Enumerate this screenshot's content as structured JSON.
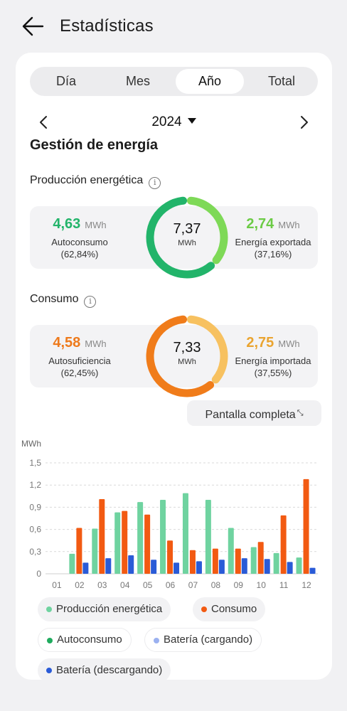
{
  "header": {
    "title": "Estadísticas"
  },
  "tabs": [
    {
      "label": "Día",
      "active": false
    },
    {
      "label": "Mes",
      "active": false
    },
    {
      "label": "Año",
      "active": true
    },
    {
      "label": "Total",
      "active": false
    }
  ],
  "period": {
    "year": "2024"
  },
  "energy": {
    "section_title": "Gestión de energía",
    "production": {
      "title": "Producción energética",
      "left_value": "4,63",
      "left_unit": "MWh",
      "left_label": "Autoconsumo",
      "left_pct": "(62,84%)",
      "center_value": "7,37",
      "center_unit": "MWh",
      "right_value": "2,74",
      "right_unit": "MWh",
      "right_label": "Energía exportada",
      "right_pct": "(37,16%)",
      "left_color": "#22b46a",
      "right_color": "#7ed957"
    },
    "consumption": {
      "title": "Consumo",
      "left_value": "4,58",
      "left_unit": "MWh",
      "left_label": "Autosuficiencia",
      "left_pct": "(62,45%)",
      "center_value": "7,33",
      "center_unit": "MWh",
      "right_value": "2,75",
      "right_unit": "MWh",
      "right_label": "Energía importada",
      "right_pct": "(37,55%)",
      "left_color": "#f07c1a",
      "right_color": "#f7c160"
    }
  },
  "fullscreen": {
    "label": "Pantalla completa"
  },
  "chart_data": {
    "type": "bar",
    "ylabel": "MWh",
    "ylim": [
      0,
      1.5
    ],
    "yticks": [
      "0",
      "0,3",
      "0,6",
      "0,9",
      "1,2",
      "1,5"
    ],
    "categories": [
      "01",
      "02",
      "03",
      "04",
      "05",
      "06",
      "07",
      "08",
      "09",
      "10",
      "11",
      "12"
    ],
    "grid": true,
    "series": [
      {
        "name": "Producción energética",
        "color": "#6fd3a0",
        "values": [
          0,
          0.27,
          0.61,
          0.83,
          0.97,
          1.0,
          1.09,
          1.0,
          0.62,
          0.36,
          0.28,
          0.22
        ]
      },
      {
        "name": "Consumo",
        "color": "#f25a12",
        "values": [
          0,
          0.62,
          1.01,
          0.85,
          0.8,
          0.45,
          0.32,
          0.34,
          0.34,
          0.43,
          0.79,
          1.28
        ]
      },
      {
        "name": "Batería (descargando)",
        "color": "#2a5bd7",
        "values": [
          0,
          0.15,
          0.21,
          0.25,
          0.19,
          0.15,
          0.17,
          0.19,
          0.21,
          0.2,
          0.16,
          0.08
        ]
      }
    ]
  },
  "legend": [
    {
      "label": "Producción energética",
      "color": "#6fd3a0",
      "outline": false
    },
    {
      "label": "Consumo",
      "color": "#f25a12",
      "outline": false
    },
    {
      "label": "Autoconsumo",
      "color": "#1fab5e",
      "outline": true
    },
    {
      "label": "Batería (cargando)",
      "color": "#9bb1f0",
      "outline": true
    },
    {
      "label": "Batería (descargando)",
      "color": "#2a5bd7",
      "outline": false
    }
  ]
}
